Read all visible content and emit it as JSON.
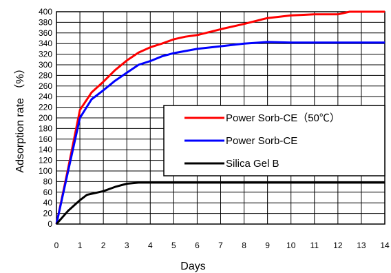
{
  "chart_data": {
    "type": "line",
    "xlabel": "Days",
    "ylabel": "Adsorption rate （%）",
    "xlim": [
      0,
      14
    ],
    "ylim": [
      0,
      400
    ],
    "x_ticks": [
      0,
      1,
      2,
      3,
      4,
      5,
      6,
      7,
      8,
      9,
      10,
      11,
      12,
      13,
      14
    ],
    "y_ticks": [
      0,
      20,
      40,
      60,
      80,
      100,
      120,
      140,
      160,
      180,
      200,
      220,
      240,
      260,
      280,
      300,
      320,
      340,
      360,
      380,
      400
    ],
    "grid": true,
    "legend_position": "right-center",
    "series": [
      {
        "name": "Power Sorb-CE（50℃）",
        "color": "#ff0000",
        "x": [
          0,
          0.5,
          1,
          1.5,
          2,
          2.5,
          3,
          3.5,
          4,
          4.5,
          5,
          5.5,
          6,
          7,
          8,
          9,
          10,
          11,
          12,
          12.5,
          13,
          14
        ],
        "y": [
          0,
          105,
          215,
          248,
          268,
          290,
          308,
          323,
          333,
          340,
          348,
          353,
          356,
          367,
          377,
          388,
          393,
          395,
          395,
          400,
          400,
          400
        ]
      },
      {
        "name": "Power Sorb-CE",
        "color": "#0000ff",
        "x": [
          0,
          0.5,
          1,
          1.5,
          2,
          2.5,
          3,
          3.5,
          4,
          4.5,
          5,
          6,
          7,
          8,
          9,
          10,
          11,
          12,
          13,
          14
        ],
        "y": [
          0,
          100,
          200,
          235,
          252,
          270,
          285,
          300,
          307,
          316,
          322,
          330,
          335,
          340,
          343,
          342,
          342,
          342,
          342,
          342
        ]
      },
      {
        "name": "Silica Gel B",
        "color": "#000000",
        "x": [
          0,
          0.5,
          1,
          1.3,
          2,
          2.5,
          3,
          3.5,
          4,
          5,
          6,
          7,
          8,
          9,
          10,
          11,
          12,
          13,
          14
        ],
        "y": [
          0,
          25,
          45,
          55,
          62,
          70,
          76,
          78,
          78,
          78,
          78,
          78,
          78,
          78,
          78,
          78,
          78,
          78,
          78
        ]
      }
    ]
  }
}
